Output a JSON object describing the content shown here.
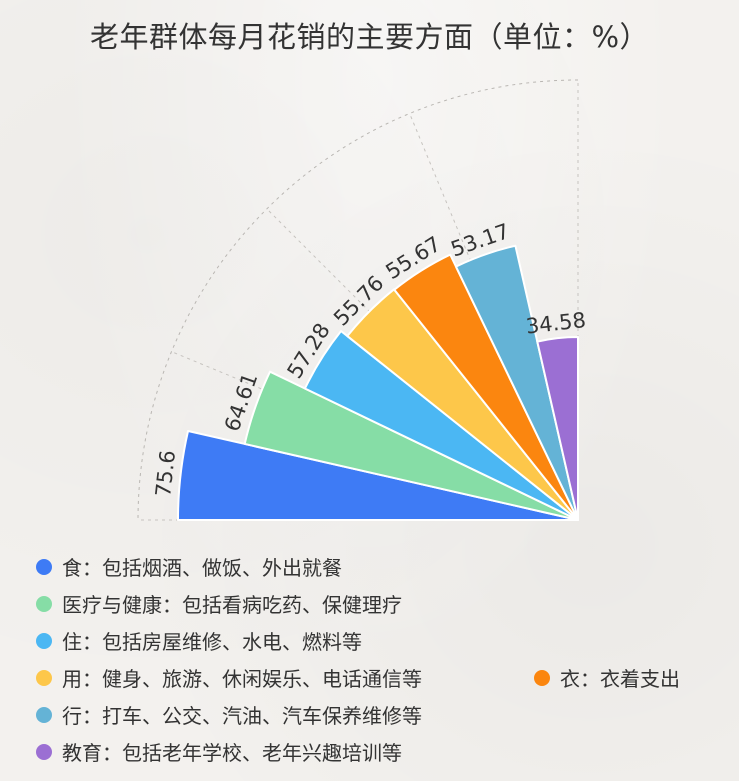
{
  "chart_data": {
    "type": "rose",
    "title": "老年群体每月花销的主要方面（单位：%）",
    "categories": [
      "食：包括烟酒、做饭、外出就餐",
      "医疗与健康：包括看病吃药、保健理疗",
      "住：包括房屋维修、水电、燃料等",
      "用：健身、旅游、休闲娱乐、电话通信等",
      "衣：衣着支出",
      "行：打车、公交、汽油、汽车保养维修等",
      "教育：包括老年学校、老年兴趣培训等"
    ],
    "values": [
      75.6,
      64.61,
      57.28,
      55.76,
      55.67,
      53.17,
      34.58
    ],
    "value_labels": [
      "75.6",
      "64.61",
      "57.28",
      "55.76",
      "55.67",
      "53.17",
      "34.58"
    ],
    "colors": [
      "#3e7bf5",
      "#86dda6",
      "#4bb7f3",
      "#fdc74a",
      "#fb860f",
      "#64b3d6",
      "#9b6fd3"
    ],
    "angle_range_deg": [
      90,
      180
    ],
    "grid": "dashed radial",
    "legend": "bottom-left, two columns"
  }
}
